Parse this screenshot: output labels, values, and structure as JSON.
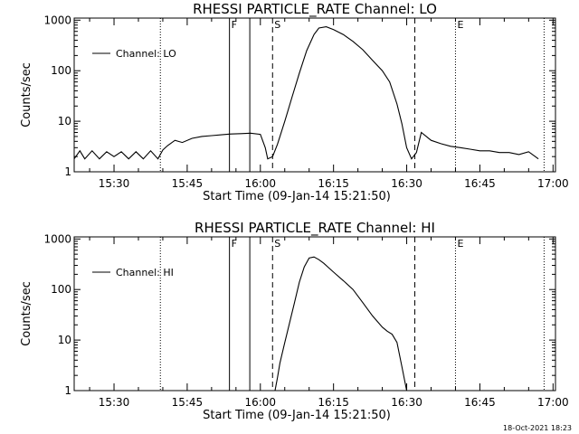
{
  "chart_data": [
    {
      "type": "line",
      "title": "RHESSI PARTICLE_RATE Channel: LO",
      "xlabel": "Start Time (09-Jan-14 15:21:50)",
      "ylabel": "Counts/sec",
      "y_scale": "log",
      "xlim": [
        "15:21:50",
        "17:00:30"
      ],
      "ylim": [
        1,
        1100
      ],
      "x_ticks": [
        "15:30",
        "15:45",
        "16:00",
        "16:15",
        "16:30",
        "16:45",
        "17:00"
      ],
      "y_ticks": [
        "1",
        "10",
        "100",
        "1000"
      ],
      "legend": {
        "entries": [
          "Channel: LO"
        ],
        "placement": "top-left"
      },
      "markers": [
        {
          "time": "15:39:30",
          "label": "",
          "style": "dotted"
        },
        {
          "time": "15:53:40",
          "label": "F",
          "style": "solid"
        },
        {
          "time": "15:57:50",
          "label": "",
          "style": "solid"
        },
        {
          "time": "16:02:30",
          "label": "S",
          "style": "dashed"
        },
        {
          "time": "16:31:40",
          "label": "",
          "style": "dashed"
        },
        {
          "time": "16:40:00",
          "label": "E",
          "style": "dotted"
        },
        {
          "time": "16:58:10",
          "label": "",
          "style": "dotted"
        }
      ],
      "series": [
        {
          "name": "Channel: LO",
          "x": [
            "15:21:50",
            "15:23:00",
            "15:24:00",
            "15:25:30",
            "15:27:00",
            "15:28:30",
            "15:30:00",
            "15:31:30",
            "15:33:00",
            "15:34:30",
            "15:36:00",
            "15:37:30",
            "15:39:00",
            "15:40:00",
            "15:41:00",
            "15:42:30",
            "15:44:00",
            "15:46:00",
            "15:48:00",
            "15:50:00",
            "15:52:00",
            "15:54:00",
            "15:56:00",
            "15:58:00",
            "16:00:00",
            "16:01:00",
            "16:01:30",
            "16:02:30",
            "16:03:30",
            "16:05:00",
            "16:06:30",
            "16:08:00",
            "16:09:30",
            "16:11:00",
            "16:12:00",
            "16:13:30",
            "16:15:00",
            "16:17:00",
            "16:19:00",
            "16:21:00",
            "16:23:00",
            "16:25:00",
            "16:26:30",
            "16:28:00",
            "16:29:00",
            "16:30:00",
            "16:31:00",
            "16:32:00",
            "16:33:00",
            "16:35:00",
            "16:37:00",
            "16:39:00",
            "16:41:00",
            "16:43:00",
            "16:45:00",
            "16:47:00",
            "16:49:00",
            "16:51:00",
            "16:53:00",
            "16:55:00",
            "16:57:00"
          ],
          "y": [
            1.8,
            2.6,
            1.8,
            2.6,
            1.8,
            2.5,
            2.0,
            2.5,
            1.8,
            2.5,
            1.8,
            2.6,
            1.8,
            2.7,
            3.3,
            4.2,
            3.8,
            4.6,
            5.0,
            5.2,
            5.4,
            5.6,
            5.7,
            5.8,
            5.5,
            3.0,
            1.8,
            2.0,
            3.5,
            10,
            30,
            90,
            250,
            520,
            700,
            740,
            650,
            520,
            380,
            260,
            160,
            100,
            60,
            22,
            9,
            3.0,
            1.8,
            2.4,
            6.0,
            4.2,
            3.6,
            3.2,
            3.0,
            2.8,
            2.6,
            2.6,
            2.4,
            2.4,
            2.2,
            2.5,
            1.8
          ]
        }
      ]
    },
    {
      "type": "line",
      "title": "RHESSI PARTICLE_RATE Channel: HI",
      "xlabel": "Start Time (09-Jan-14 15:21:50)",
      "ylabel": "Counts/sec",
      "y_scale": "log",
      "xlim": [
        "15:21:50",
        "17:00:30"
      ],
      "ylim": [
        1,
        1100
      ],
      "x_ticks": [
        "15:30",
        "15:45",
        "16:00",
        "16:15",
        "16:30",
        "16:45",
        "17:00"
      ],
      "y_ticks": [
        "1",
        "10",
        "100",
        "1000"
      ],
      "legend": {
        "entries": [
          "Channel: HI"
        ],
        "placement": "top-left"
      },
      "markers": [
        {
          "time": "15:39:30",
          "label": "",
          "style": "dotted"
        },
        {
          "time": "15:53:40",
          "label": "F",
          "style": "solid"
        },
        {
          "time": "15:57:50",
          "label": "",
          "style": "solid"
        },
        {
          "time": "16:02:30",
          "label": "S",
          "style": "dashed"
        },
        {
          "time": "16:31:40",
          "label": "",
          "style": "dashed"
        },
        {
          "time": "16:40:00",
          "label": "E",
          "style": "dotted"
        },
        {
          "time": "16:58:10",
          "label": "",
          "style": "dotted"
        }
      ],
      "series": [
        {
          "name": "Channel: HI",
          "x": [
            "16:03:00",
            "16:03:30",
            "16:04:00",
            "16:05:00",
            "16:06:00",
            "16:07:00",
            "16:08:00",
            "16:09:00",
            "16:10:00",
            "16:11:00",
            "16:12:00",
            "16:13:00",
            "16:14:00",
            "16:15:30",
            "16:17:00",
            "16:19:00",
            "16:21:00",
            "16:23:00",
            "16:25:00",
            "16:26:00",
            "16:27:00",
            "16:28:00",
            "16:29:00",
            "16:30:00"
          ],
          "y": [
            1.0,
            1.8,
            3.5,
            9,
            22,
            55,
            140,
            280,
            420,
            440,
            390,
            330,
            270,
            200,
            150,
            100,
            55,
            30,
            18,
            15,
            13,
            9,
            3,
            1.0
          ]
        }
      ]
    }
  ],
  "footer_timestamp": "18-Oct-2021 18:23"
}
